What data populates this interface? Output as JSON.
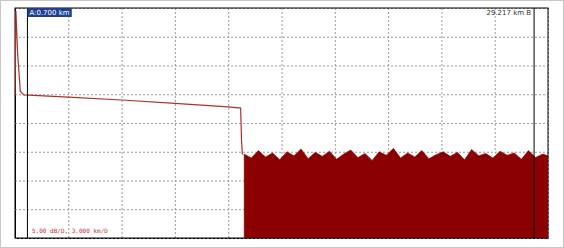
{
  "chart_data": {
    "type": "line",
    "xlim": [
      0,
      30
    ],
    "ylim": [
      0,
      40
    ],
    "xticks": [
      0,
      3,
      6,
      9,
      12,
      15,
      18,
      21,
      24,
      27,
      30
    ],
    "yticks": [
      0,
      5,
      10,
      15,
      20,
      25,
      30,
      35,
      40
    ],
    "grid": true,
    "tick_labels": false,
    "series": [
      {
        "type": "line",
        "color": "#b0302a",
        "x": [
          0,
          0.05,
          0.15,
          0.3,
          0.5,
          3,
          6,
          9,
          12,
          12.7,
          12.75,
          12.8
        ],
        "values": [
          25,
          39.5,
          32,
          25.5,
          24.9,
          24.5,
          24.0,
          23.4,
          22.8,
          22.6,
          17,
          14.5
        ]
      },
      {
        "type": "area",
        "color": "#8b0000",
        "x": [
          12.9,
          13.3,
          13.7,
          14.1,
          14.5,
          14.9,
          15.3,
          15.7,
          16.1,
          16.5,
          16.9,
          17.3,
          17.7,
          18.1,
          18.5,
          18.9,
          19.3,
          19.7,
          20.1,
          20.5,
          20.9,
          21.3,
          21.7,
          22.1,
          22.5,
          22.9,
          23.3,
          23.7,
          24.1,
          24.5,
          24.9,
          25.3,
          25.7,
          26.1,
          26.5,
          26.9,
          27.3,
          27.7,
          28.1,
          28.5,
          28.9,
          29.3,
          29.7,
          30.0
        ],
        "values": [
          14.6,
          13.9,
          15.2,
          14.1,
          14.8,
          13.6,
          15.0,
          14.3,
          15.5,
          13.8,
          14.9,
          14.2,
          15.1,
          13.7,
          14.6,
          15.3,
          14.0,
          14.7,
          13.5,
          15.0,
          14.4,
          15.6,
          13.9,
          14.8,
          14.1,
          15.2,
          13.8,
          14.5,
          15.0,
          14.2,
          14.9,
          13.6,
          15.4,
          14.3,
          14.7,
          13.9,
          15.1,
          14.4,
          14.8,
          13.7,
          15.2,
          14.0,
          14.6,
          14.3
        ]
      }
    ],
    "annotations": [
      {
        "text": "A:0.700 km",
        "x": 0.7
      },
      {
        "text": "29.217 km B",
        "x": 29.217
      },
      {
        "text": "5.00 dB/D, 3.000 km/D"
      }
    ]
  }
}
